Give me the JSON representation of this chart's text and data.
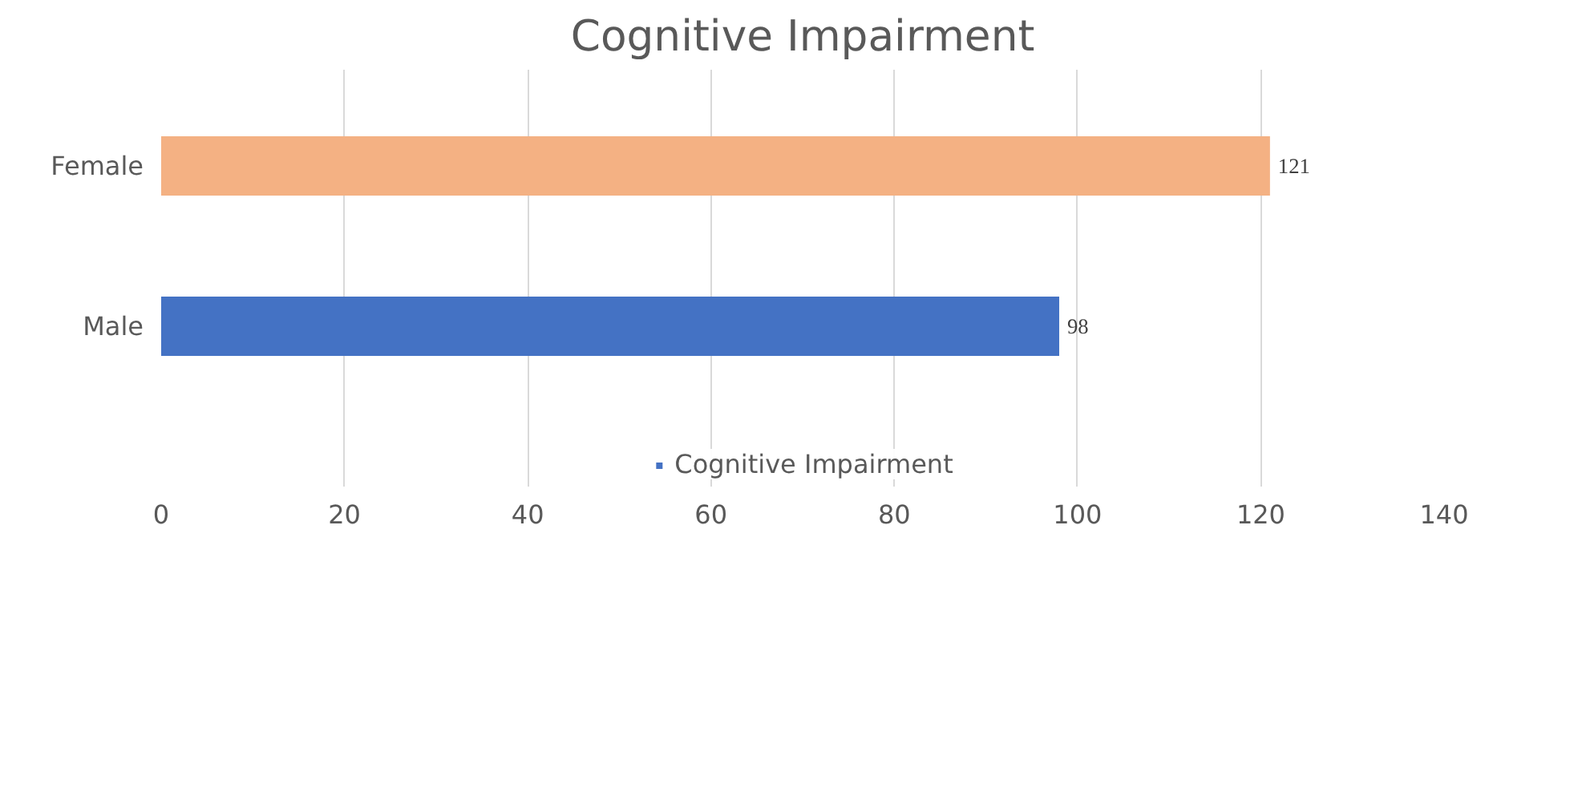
{
  "chart_data": {
    "type": "bar",
    "orientation": "horizontal",
    "title": "Cognitive Impairment",
    "categories": [
      "Female",
      "Male"
    ],
    "series": [
      {
        "name": "Cognitive Impairment",
        "color": "#4472c4",
        "colors": [
          "#f4b183",
          "#4472c4"
        ],
        "values": [
          121,
          98
        ]
      }
    ],
    "xlim": [
      0,
      140
    ],
    "xticks": [
      0,
      20,
      40,
      60,
      80,
      100,
      120,
      140
    ],
    "grid": "x",
    "legend": "bottom",
    "data_labels": true
  }
}
